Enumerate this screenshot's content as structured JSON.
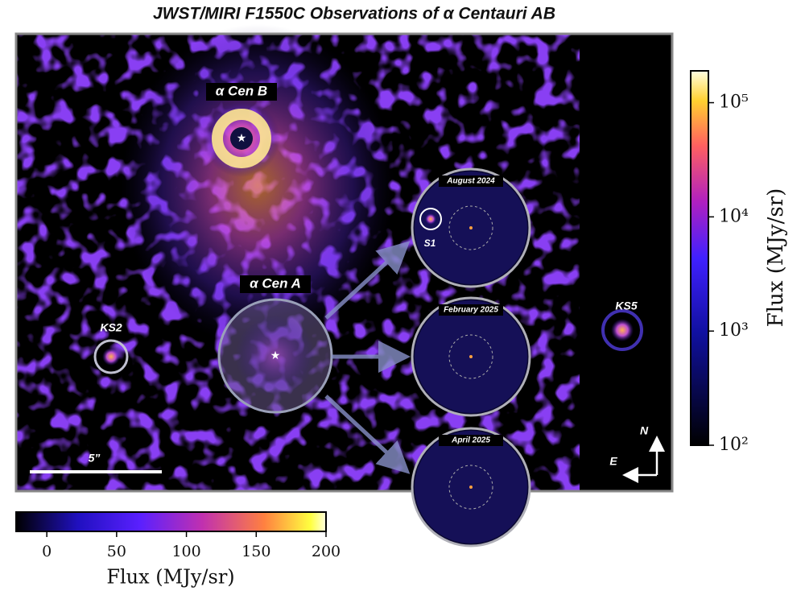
{
  "title": "JWST/MIRI F1550C Observations of α Centauri AB",
  "labels": {
    "cen_b": "α Cen B",
    "cen_a": "α Cen A",
    "ks2": "KS2",
    "ks5": "KS5",
    "s1": "S1",
    "scale_bar": "5”",
    "north": "N",
    "east": "E"
  },
  "insets": [
    "August 2024",
    "February 2025",
    "April 2025"
  ],
  "colorbar_log": {
    "label": "Flux (MJy/sr)",
    "log_scale": true,
    "lim": [
      100,
      190000
    ],
    "ticks": [
      {
        "value": 100,
        "label": "10²"
      },
      {
        "value": 1000,
        "label": "10³"
      },
      {
        "value": 10000,
        "label": "10⁴"
      },
      {
        "value": 100000,
        "label": "10⁵"
      }
    ]
  },
  "colorbar_linear": {
    "label": "Flux (MJy/sr)",
    "log_scale": false,
    "lim": [
      -22,
      200
    ],
    "ticks": [
      0,
      50,
      100,
      150,
      200
    ]
  }
}
